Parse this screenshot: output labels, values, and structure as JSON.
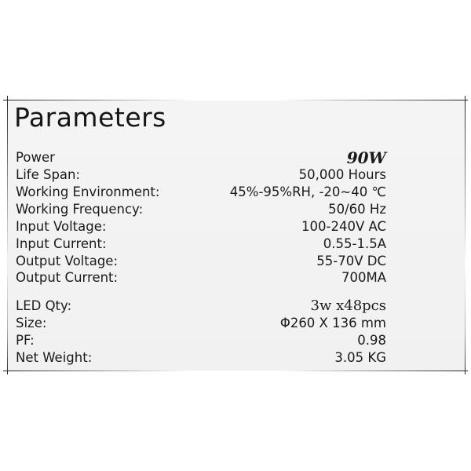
{
  "title": "Parameters",
  "rows": [
    {
      "label": "Power",
      "value": "90W"
    },
    {
      "label": "Life Span:",
      "value": "50,000 Hours"
    },
    {
      "label": "Working Environment:",
      "value": "45%-95%RH, -20~40 ℃"
    },
    {
      "label": "Working Frequency:",
      "value": "50/60 Hz"
    },
    {
      "label": "Input Voltage:",
      "value": "100-240V AC"
    },
    {
      "label": "Input Current:",
      "value": "0.55-1.5A"
    },
    {
      "label": "Output Voltage:",
      "value": "55-70V  DC"
    },
    {
      "label": "Output Current:",
      "value": "700MA"
    },
    {
      "label": "LED Qty:",
      "value": "3w x48pcs"
    },
    {
      "label": "Size:",
      "value": "Φ260 X 136 mm"
    },
    {
      "label": "PF:",
      "value": "0.98"
    },
    {
      "label": "Net Weight:",
      "value": "3.05 KG"
    }
  ]
}
